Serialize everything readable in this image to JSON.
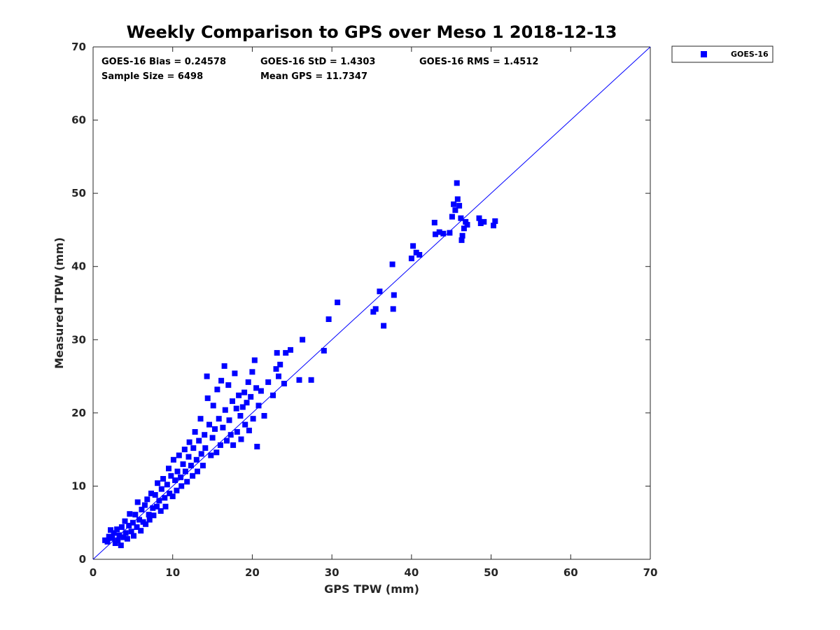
{
  "chart_data": {
    "type": "scatter",
    "title": "Weekly Comparison to GPS over Meso 1 2018-12-13",
    "xlabel": "GPS TPW (mm)",
    "ylabel": "Measured TPW (mm)",
    "xlim": [
      0,
      70
    ],
    "ylim": [
      0,
      70
    ],
    "xticks": [
      0,
      10,
      20,
      30,
      40,
      50,
      60,
      70
    ],
    "yticks": [
      0,
      10,
      20,
      30,
      40,
      50,
      60,
      70
    ],
    "grid": false,
    "legend_position": "outside-top-right",
    "reference_line": {
      "type": "one-to-one",
      "x": [
        0,
        70
      ],
      "y": [
        0,
        70
      ],
      "color": "#0000ff"
    },
    "stats": {
      "bias": "GOES-16 Bias = 0.24578",
      "std": "GOES-16 StD = 1.4303",
      "rms": "GOES-16 RMS = 1.4512",
      "sample_size": "Sample Size = 6498",
      "mean_gps": "Mean GPS = 11.7347"
    },
    "series": [
      {
        "name": "GOES-16",
        "color": "#0000ff",
        "marker": "square",
        "points": [
          [
            1.5,
            2.6
          ],
          [
            1.8,
            2.4
          ],
          [
            2.0,
            3.1
          ],
          [
            2.2,
            4.0
          ],
          [
            2.4,
            2.9
          ],
          [
            2.6,
            3.6
          ],
          [
            2.8,
            2.2
          ],
          [
            3.0,
            4.1
          ],
          [
            3.1,
            2.6
          ],
          [
            3.3,
            3.3
          ],
          [
            3.5,
            1.9
          ],
          [
            3.6,
            4.4
          ],
          [
            3.8,
            3.0
          ],
          [
            4.0,
            5.2
          ],
          [
            4.1,
            3.6
          ],
          [
            4.3,
            2.8
          ],
          [
            4.5,
            4.6
          ],
          [
            4.6,
            6.2
          ],
          [
            4.8,
            3.8
          ],
          [
            5.0,
            5.0
          ],
          [
            5.1,
            3.2
          ],
          [
            5.3,
            6.1
          ],
          [
            5.5,
            4.4
          ],
          [
            5.6,
            7.8
          ],
          [
            5.8,
            5.4
          ],
          [
            6.0,
            3.9
          ],
          [
            6.1,
            6.8
          ],
          [
            6.3,
            5.1
          ],
          [
            6.5,
            7.4
          ],
          [
            6.6,
            4.8
          ],
          [
            6.8,
            8.2
          ],
          [
            7.0,
            6.1
          ],
          [
            7.1,
            5.4
          ],
          [
            7.3,
            9.0
          ],
          [
            7.5,
            7.0
          ],
          [
            7.6,
            6.0
          ],
          [
            7.8,
            8.8
          ],
          [
            8.0,
            7.2
          ],
          [
            8.1,
            10.4
          ],
          [
            8.3,
            8.0
          ],
          [
            8.5,
            6.6
          ],
          [
            8.6,
            9.6
          ],
          [
            8.8,
            11.0
          ],
          [
            9.0,
            8.4
          ],
          [
            9.1,
            7.2
          ],
          [
            9.3,
            10.2
          ],
          [
            9.5,
            12.4
          ],
          [
            9.6,
            9.0
          ],
          [
            9.8,
            11.4
          ],
          [
            10.0,
            8.6
          ],
          [
            10.1,
            13.6
          ],
          [
            10.3,
            10.8
          ],
          [
            10.5,
            9.4
          ],
          [
            10.6,
            12.0
          ],
          [
            10.8,
            14.2
          ],
          [
            11.0,
            11.2
          ],
          [
            11.1,
            10.0
          ],
          [
            11.3,
            13.0
          ],
          [
            11.5,
            15.0
          ],
          [
            11.6,
            12.0
          ],
          [
            11.8,
            10.6
          ],
          [
            12.0,
            14.0
          ],
          [
            12.1,
            16.0
          ],
          [
            12.3,
            12.8
          ],
          [
            12.5,
            11.4
          ],
          [
            12.6,
            15.2
          ],
          [
            12.8,
            17.4
          ],
          [
            13.0,
            13.6
          ],
          [
            13.1,
            12.0
          ],
          [
            13.3,
            16.2
          ],
          [
            13.5,
            19.2
          ],
          [
            13.6,
            14.4
          ],
          [
            13.8,
            12.8
          ],
          [
            14.0,
            17.0
          ],
          [
            14.1,
            15.2
          ],
          [
            14.3,
            25.0
          ],
          [
            14.4,
            22.0
          ],
          [
            14.6,
            18.4
          ],
          [
            14.8,
            14.2
          ],
          [
            15.0,
            16.6
          ],
          [
            15.1,
            21.0
          ],
          [
            15.3,
            17.8
          ],
          [
            15.5,
            14.6
          ],
          [
            15.6,
            23.2
          ],
          [
            15.8,
            19.2
          ],
          [
            16.0,
            15.6
          ],
          [
            16.1,
            24.4
          ],
          [
            16.3,
            18.0
          ],
          [
            16.5,
            26.4
          ],
          [
            16.6,
            20.4
          ],
          [
            16.8,
            16.2
          ],
          [
            17.0,
            23.8
          ],
          [
            17.1,
            19.0
          ],
          [
            17.3,
            17.0
          ],
          [
            17.5,
            21.6
          ],
          [
            17.6,
            15.6
          ],
          [
            17.8,
            25.4
          ],
          [
            18.0,
            20.6
          ],
          [
            18.1,
            17.4
          ],
          [
            18.3,
            22.4
          ],
          [
            18.5,
            19.6
          ],
          [
            18.6,
            16.4
          ],
          [
            18.8,
            20.8
          ],
          [
            19.0,
            22.8
          ],
          [
            19.1,
            18.4
          ],
          [
            19.3,
            21.4
          ],
          [
            19.5,
            24.2
          ],
          [
            19.6,
            17.6
          ],
          [
            19.8,
            22.2
          ],
          [
            20.0,
            25.6
          ],
          [
            20.1,
            19.2
          ],
          [
            20.3,
            27.2
          ],
          [
            20.5,
            23.4
          ],
          [
            20.6,
            15.4
          ],
          [
            20.8,
            21.0
          ],
          [
            21.1,
            23.0
          ],
          [
            21.5,
            19.6
          ],
          [
            22.0,
            24.2
          ],
          [
            22.6,
            22.4
          ],
          [
            23.0,
            26.0
          ],
          [
            23.1,
            28.2
          ],
          [
            23.3,
            25.0
          ],
          [
            23.5,
            26.6
          ],
          [
            24.0,
            24.0
          ],
          [
            24.2,
            28.2
          ],
          [
            24.8,
            28.6
          ],
          [
            25.9,
            24.5
          ],
          [
            26.3,
            30.0
          ],
          [
            27.4,
            24.5
          ],
          [
            29.0,
            28.5
          ],
          [
            29.6,
            32.8
          ],
          [
            30.7,
            35.1
          ],
          [
            35.2,
            33.8
          ],
          [
            35.5,
            34.2
          ],
          [
            36.0,
            36.6
          ],
          [
            36.5,
            31.9
          ],
          [
            37.6,
            40.3
          ],
          [
            37.7,
            34.2
          ],
          [
            37.8,
            36.1
          ],
          [
            40.0,
            41.1
          ],
          [
            40.2,
            42.8
          ],
          [
            40.6,
            41.9
          ],
          [
            41.0,
            41.6
          ],
          [
            42.9,
            46.0
          ],
          [
            43.0,
            44.4
          ],
          [
            43.5,
            44.7
          ],
          [
            44.0,
            44.5
          ],
          [
            44.8,
            44.6
          ],
          [
            45.1,
            46.8
          ],
          [
            45.3,
            48.5
          ],
          [
            45.5,
            47.7
          ],
          [
            45.7,
            51.4
          ],
          [
            45.8,
            49.2
          ],
          [
            46.0,
            48.3
          ],
          [
            46.2,
            46.6
          ],
          [
            46.3,
            43.6
          ],
          [
            46.4,
            44.2
          ],
          [
            46.6,
            45.2
          ],
          [
            46.8,
            46.1
          ],
          [
            47.0,
            45.7
          ],
          [
            48.5,
            46.6
          ],
          [
            48.7,
            45.9
          ],
          [
            49.1,
            46.1
          ],
          [
            50.3,
            45.6
          ],
          [
            50.5,
            46.2
          ]
        ]
      }
    ]
  }
}
